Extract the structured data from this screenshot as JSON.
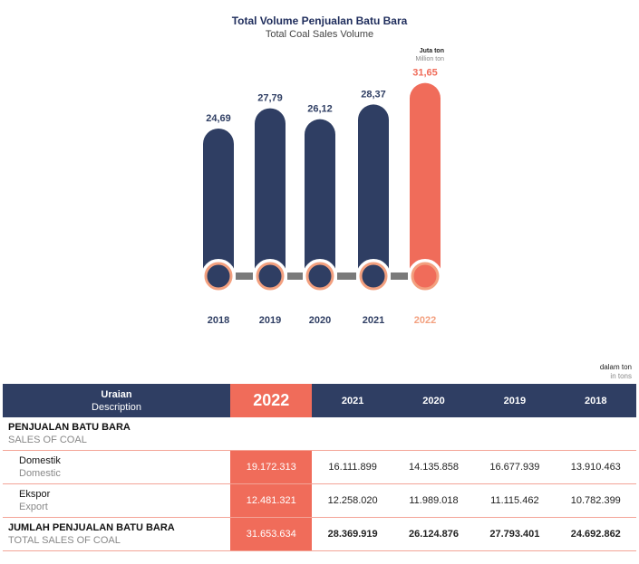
{
  "header": {
    "title": "Total Volume Penjualan Batu Bara",
    "subtitle": "Total Coal Sales Volume",
    "unit_id": "Juta ton",
    "unit_en": "Million ton"
  },
  "chart_data": {
    "type": "bar",
    "categories": [
      "2018",
      "2019",
      "2020",
      "2021",
      "2022"
    ],
    "values": [
      24.69,
      27.79,
      26.12,
      28.37,
      31.65
    ],
    "labels": [
      "24,69",
      "27,79",
      "26,12",
      "28,37",
      "31,65"
    ],
    "title": "Total Volume Penjualan Batu Bara",
    "subtitle": "Total Coal Sales Volume",
    "ylabel": "Juta ton / Million ton",
    "highlight_index": 4,
    "colors": {
      "normal": "#2f3e63",
      "highlight": "#f06c5a",
      "ring": "#f3a07f",
      "connector": "#7a7a7a",
      "year_normal": "#2f3e63",
      "year_highlight": "#f3a07f"
    }
  },
  "table": {
    "unit_id": "dalam ton",
    "unit_en": "in tons",
    "header": {
      "desc_id": "Uraian",
      "desc_en": "Description",
      "years": [
        "2022",
        "2021",
        "2020",
        "2019",
        "2018"
      ]
    },
    "section": {
      "id": "PENJUALAN BATU BARA",
      "en": "SALES OF COAL"
    },
    "rows": [
      {
        "id": "Domestik",
        "en": "Domestic",
        "values": [
          "19.172.313",
          "16.111.899",
          "14.135.858",
          "16.677.939",
          "13.910.463"
        ]
      },
      {
        "id": "Ekspor",
        "en": "Export",
        "values": [
          "12.481.321",
          "12.258.020",
          "11.989.018",
          "11.115.462",
          "10.782.399"
        ]
      }
    ],
    "total": {
      "id": "JUMLAH PENJUALAN BATU BARA",
      "en": "TOTAL SALES OF COAL",
      "values": [
        "31.653.634",
        "28.369.919",
        "26.124.876",
        "27.793.401",
        "24.692.862"
      ]
    }
  }
}
